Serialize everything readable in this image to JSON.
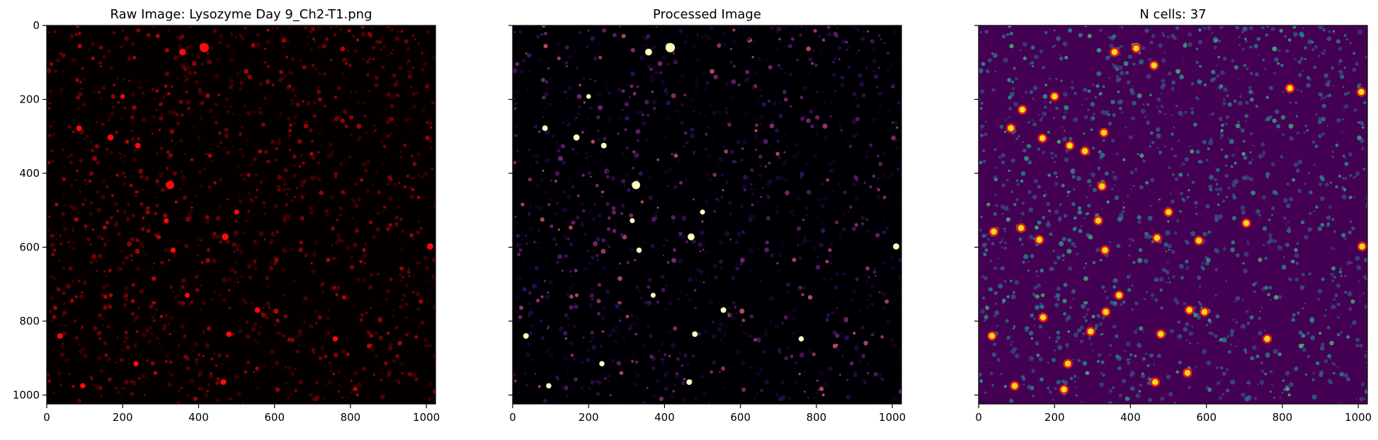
{
  "figure": {
    "panels": [
      {
        "id": "raw",
        "title": "Raw Image: Lysozyme Day 9_Ch2-T1.png",
        "colormap": "red-on-black",
        "background": "#050000",
        "show_y_tick_labels": true
      },
      {
        "id": "processed",
        "title": "Processed Image",
        "colormap": "magma",
        "background": "#000004",
        "show_y_tick_labels": false
      },
      {
        "id": "detected",
        "title": "N cells: 37",
        "colormap": "viridis",
        "background": "#440154",
        "show_y_tick_labels": false,
        "marker_color": "#e8191c",
        "marker_fill": "#f2e21b"
      }
    ],
    "axes": {
      "x_range": [
        0,
        1024
      ],
      "y_range": [
        0,
        1024
      ],
      "y_inverted": true,
      "x_ticks": [
        0,
        200,
        400,
        600,
        800,
        1000
      ],
      "y_ticks": [
        0,
        200,
        400,
        600,
        800,
        1000
      ],
      "x_tick_labels": [
        "0",
        "200",
        "400",
        "600",
        "800",
        "1000"
      ],
      "y_tick_labels": [
        "0",
        "200",
        "400",
        "600",
        "800",
        "1000"
      ]
    },
    "detections": [
      [
        415,
        62
      ],
      [
        358,
        72
      ],
      [
        462,
        108
      ],
      [
        820,
        170
      ],
      [
        1008,
        180
      ],
      [
        200,
        192
      ],
      [
        115,
        228
      ],
      [
        85,
        278
      ],
      [
        168,
        305
      ],
      [
        330,
        290
      ],
      [
        240,
        325
      ],
      [
        280,
        340
      ],
      [
        325,
        435
      ],
      [
        500,
        505
      ],
      [
        315,
        528
      ],
      [
        705,
        535
      ],
      [
        40,
        558
      ],
      [
        112,
        548
      ],
      [
        160,
        580
      ],
      [
        470,
        575
      ],
      [
        580,
        582
      ],
      [
        1010,
        598
      ],
      [
        333,
        608
      ],
      [
        370,
        730
      ],
      [
        335,
        775
      ],
      [
        555,
        770
      ],
      [
        595,
        775
      ],
      [
        170,
        790
      ],
      [
        295,
        828
      ],
      [
        480,
        835
      ],
      [
        35,
        840
      ],
      [
        760,
        848
      ],
      [
        235,
        915
      ],
      [
        550,
        940
      ],
      [
        465,
        965
      ],
      [
        95,
        975
      ],
      [
        225,
        985
      ]
    ],
    "bright_spots": [
      [
        415,
        60,
        3.0
      ],
      [
        358,
        72,
        2.2
      ],
      [
        325,
        432,
        2.6
      ],
      [
        168,
        303,
        2.0
      ],
      [
        470,
        572,
        2.2
      ],
      [
        240,
        325,
        1.8
      ],
      [
        85,
        278,
        1.8
      ],
      [
        1010,
        598,
        2.0
      ],
      [
        315,
        528,
        1.6
      ],
      [
        555,
        770,
        1.8
      ],
      [
        480,
        835,
        1.8
      ],
      [
        760,
        848,
        1.7
      ],
      [
        235,
        915,
        1.7
      ],
      [
        35,
        840,
        1.8
      ],
      [
        465,
        965,
        1.8
      ],
      [
        95,
        975,
        1.7
      ],
      [
        200,
        192,
        1.5
      ],
      [
        500,
        505,
        1.6
      ],
      [
        333,
        608,
        1.7
      ],
      [
        370,
        730,
        1.6
      ]
    ]
  }
}
